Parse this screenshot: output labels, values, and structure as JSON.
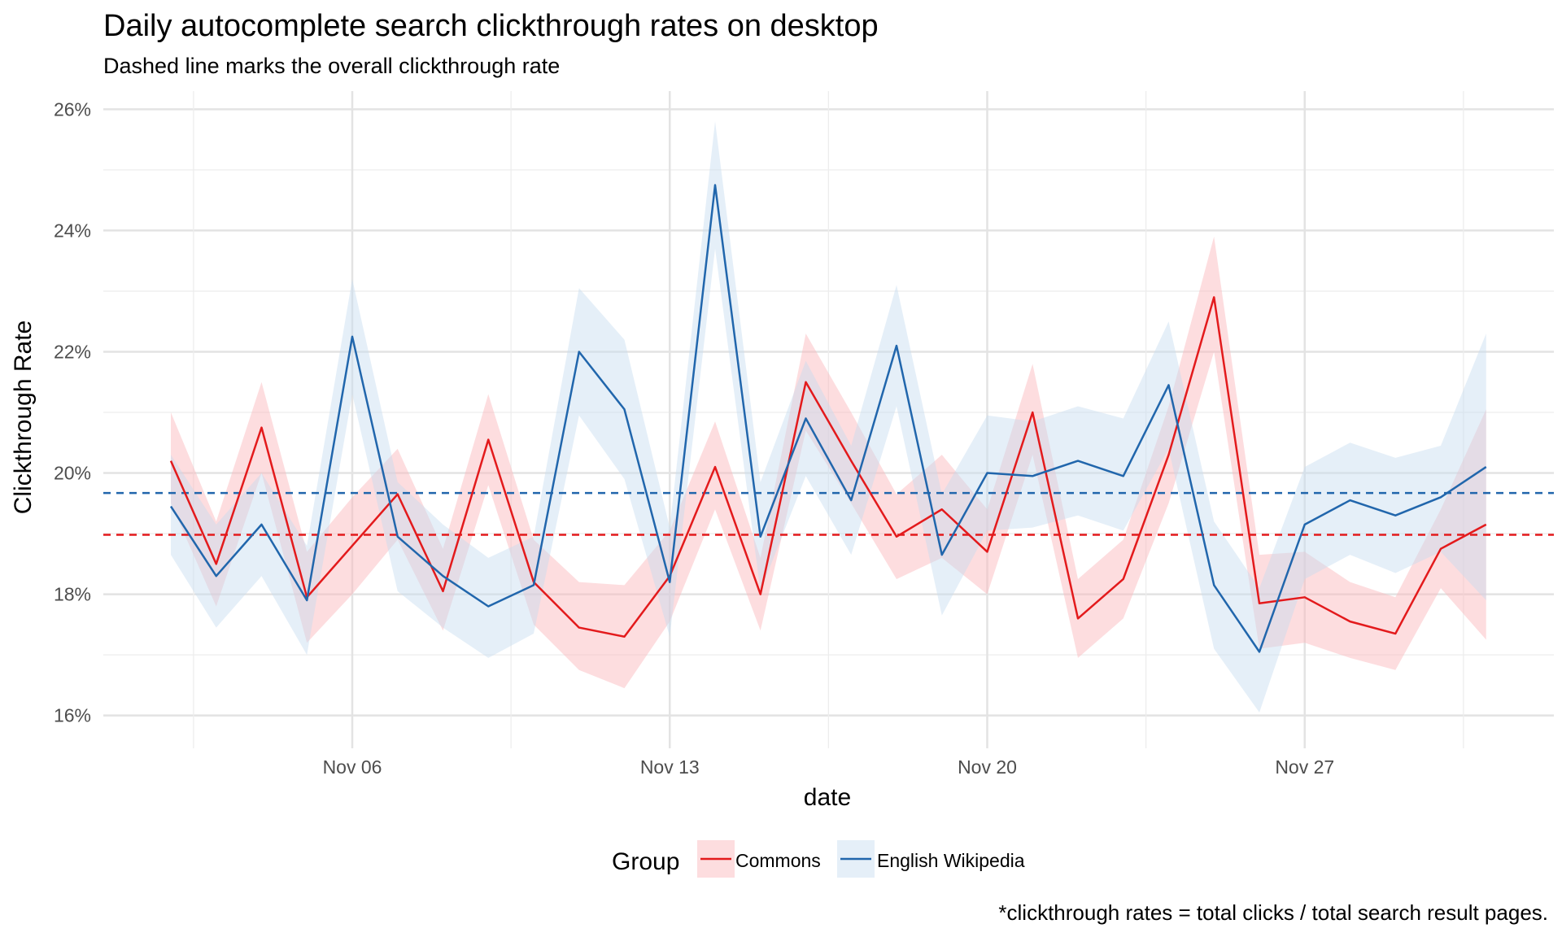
{
  "chart_data": {
    "type": "line",
    "title": "Daily autocomplete search clickthrough rates on desktop",
    "subtitle": "Dashed line marks the overall clickthrough rate",
    "xlabel": "date",
    "ylabel": "Clickthrough Rate",
    "caption": "*clickthrough rates = total clicks / total search result pages.",
    "x": [
      "Nov 02",
      "Nov 03",
      "Nov 04",
      "Nov 05",
      "Nov 06",
      "Nov 07",
      "Nov 08",
      "Nov 09",
      "Nov 10",
      "Nov 11",
      "Nov 12",
      "Nov 13",
      "Nov 14",
      "Nov 15",
      "Nov 16",
      "Nov 17",
      "Nov 18",
      "Nov 19",
      "Nov 20",
      "Nov 21",
      "Nov 22",
      "Nov 23",
      "Nov 24",
      "Nov 25",
      "Nov 26",
      "Nov 27",
      "Nov 28",
      "Nov 29",
      "Nov 30",
      "Dec 01"
    ],
    "x_ticks": [
      "Nov 06",
      "Nov 13",
      "Nov 20",
      "Nov 27"
    ],
    "ylim": [
      15.7,
      26.3
    ],
    "y_ticks": [
      16,
      18,
      20,
      22,
      24,
      26
    ],
    "y_tick_labels": [
      "16%",
      "18%",
      "20%",
      "22%",
      "24%",
      "26%"
    ],
    "grid": true,
    "legend": {
      "title": "Group",
      "placement": "bottom"
    },
    "series": [
      {
        "name": "Commons",
        "color": "#e31a1c",
        "band_color": "#fbb4b9",
        "values": [
          20.2,
          18.5,
          20.75,
          17.95,
          18.8,
          19.65,
          18.05,
          20.55,
          18.2,
          17.45,
          17.3,
          18.3,
          20.1,
          18.0,
          21.5,
          20.2,
          18.95,
          19.4,
          18.7,
          21.0,
          17.6,
          18.25,
          20.3,
          22.9,
          17.85,
          17.95,
          17.55,
          17.35,
          18.75,
          19.15
        ],
        "lower": [
          19.5,
          17.8,
          20.0,
          17.2,
          18.0,
          18.9,
          17.4,
          19.8,
          17.5,
          16.75,
          16.45,
          17.55,
          19.4,
          17.4,
          20.7,
          19.5,
          18.25,
          18.6,
          18.0,
          20.3,
          16.95,
          17.6,
          19.5,
          22.0,
          17.1,
          17.2,
          16.95,
          16.75,
          18.1,
          17.25
        ],
        "upper": [
          21.0,
          19.2,
          21.5,
          18.7,
          19.6,
          20.4,
          18.75,
          21.3,
          18.9,
          18.2,
          18.15,
          19.05,
          20.85,
          18.6,
          22.3,
          21.0,
          19.65,
          20.3,
          19.4,
          21.8,
          18.25,
          18.9,
          21.1,
          23.9,
          18.65,
          18.7,
          18.2,
          17.95,
          19.4,
          21.05
        ],
        "overall": 18.98
      },
      {
        "name": "English Wikipedia",
        "color": "#2166ac",
        "band_color": "#c6dbef",
        "values": [
          19.45,
          18.3,
          19.15,
          17.9,
          22.25,
          18.95,
          18.3,
          17.8,
          18.15,
          22.0,
          21.05,
          18.2,
          24.75,
          18.95,
          20.9,
          19.55,
          22.1,
          18.65,
          20.0,
          19.95,
          20.2,
          19.95,
          21.45,
          18.15,
          17.05,
          19.15,
          19.55,
          19.3,
          19.6,
          20.1
        ],
        "lower": [
          18.65,
          17.45,
          18.3,
          17.0,
          21.3,
          18.05,
          17.45,
          16.95,
          17.35,
          20.95,
          19.9,
          17.3,
          23.7,
          18.05,
          19.95,
          18.65,
          21.1,
          17.65,
          19.05,
          19.1,
          19.3,
          19.05,
          20.4,
          17.1,
          16.05,
          18.25,
          18.65,
          18.35,
          18.7,
          17.9
        ],
        "upper": [
          20.3,
          19.15,
          20.0,
          18.8,
          23.2,
          19.85,
          19.15,
          18.6,
          18.95,
          23.05,
          22.2,
          19.1,
          25.8,
          19.85,
          21.85,
          20.45,
          23.1,
          19.65,
          20.95,
          20.85,
          21.1,
          20.9,
          22.5,
          19.2,
          18.1,
          20.1,
          20.5,
          20.25,
          20.45,
          22.3
        ],
        "overall": 19.67
      }
    ]
  }
}
